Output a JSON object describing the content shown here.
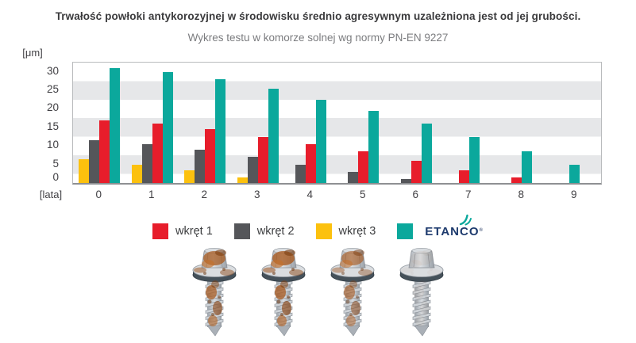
{
  "page_background": "#ffffff",
  "chart_data": {
    "type": "bar",
    "title": "Trwałość powłoki antykorozyjnej w środowisku średnio agresywnym uzależniona jest od jej grubości.",
    "subtitle": "Wykres testu w komorze solnej wg normy PN-EN 9227",
    "y_axis_unit": "[μm]",
    "x_axis_unit": "[lata]",
    "categories": [
      "0",
      "1",
      "2",
      "3",
      "4",
      "5",
      "6",
      "7",
      "8",
      "9"
    ],
    "y_ticks": [
      0,
      5,
      10,
      15,
      20,
      25,
      30
    ],
    "ylim": [
      0,
      32.5
    ],
    "grid": {
      "style": "alternating-horizontal-bands",
      "band_color": "#e6e7e9",
      "background": "#ffffff",
      "band_height_units": 5
    },
    "series": [
      {
        "name": "wkręt 3",
        "color": "#fcc10e",
        "values": [
          6.5,
          5,
          3.5,
          1.5,
          0,
          0,
          0,
          0,
          0,
          0
        ]
      },
      {
        "name": "wkręt 2",
        "color": "#55565a",
        "values": [
          11.5,
          10.5,
          9,
          7,
          5,
          3,
          1,
          0,
          0,
          0
        ]
      },
      {
        "name": "wkręt 1",
        "color": "#e71d2b",
        "values": [
          17,
          16,
          14.5,
          12.5,
          10.5,
          8.5,
          6,
          3.5,
          1.5,
          0
        ]
      },
      {
        "name": "ETANCO",
        "color": "#0ba89c",
        "values": [
          31,
          30,
          28,
          25.5,
          22.5,
          19.5,
          16,
          12.5,
          8.5,
          5
        ]
      }
    ],
    "legend_position": "bottom-center",
    "legend": [
      {
        "label": "wkręt 1",
        "color": "#e71d2b",
        "type": "swatch"
      },
      {
        "label": "wkręt 2",
        "color": "#55565a",
        "type": "swatch"
      },
      {
        "label": "wkręt 3",
        "color": "#fcc10e",
        "type": "swatch"
      },
      {
        "label": "ETANCO",
        "color": "#0ba89c",
        "type": "swatch-logo",
        "logo_text": "ETANCO",
        "logo_registered_mark": "®",
        "logo_color": "#1d3a6d",
        "logo_icon": "etanco-swoosh-icon",
        "logo_icon_color": "#0ba89c"
      }
    ]
  },
  "footer_images": {
    "screws": [
      {
        "name": "rusted-screw-photo-1",
        "rust_level": 0.95
      },
      {
        "name": "rusted-screw-photo-2",
        "rust_level": 1.0
      },
      {
        "name": "rusted-screw-photo-3",
        "rust_level": 0.8
      },
      {
        "name": "clean-screw-photo-4",
        "rust_level": 0.07
      }
    ]
  }
}
